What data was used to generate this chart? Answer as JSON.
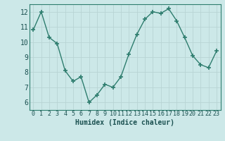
{
  "x": [
    0,
    1,
    2,
    3,
    4,
    5,
    6,
    7,
    8,
    9,
    10,
    11,
    12,
    13,
    14,
    15,
    16,
    17,
    18,
    19,
    20,
    21,
    22,
    23
  ],
  "y": [
    10.8,
    12.0,
    10.3,
    9.9,
    8.1,
    7.4,
    7.7,
    6.0,
    6.5,
    7.2,
    7.0,
    7.7,
    9.2,
    10.5,
    11.5,
    12.0,
    11.9,
    12.2,
    11.4,
    10.3,
    9.1,
    8.5,
    8.3,
    9.4
  ],
  "line_color": "#2e7d6e",
  "bg_color": "#cce8e8",
  "grid_color": "#b8d4d4",
  "xlabel": "Humidex (Indice chaleur)",
  "ylim": [
    5.5,
    12.5
  ],
  "xlim": [
    -0.5,
    23.5
  ],
  "yticks": [
    6,
    7,
    8,
    9,
    10,
    11,
    12
  ],
  "xticks": [
    0,
    1,
    2,
    3,
    4,
    5,
    6,
    7,
    8,
    9,
    10,
    11,
    12,
    13,
    14,
    15,
    16,
    17,
    18,
    19,
    20,
    21,
    22,
    23
  ],
  "marker": "+",
  "markersize": 4,
  "linewidth": 1.0,
  "xlabel_fontsize": 7,
  "tick_fontsize": 6,
  "tick_color": "#1a5050",
  "spine_color": "#2e7d6e"
}
